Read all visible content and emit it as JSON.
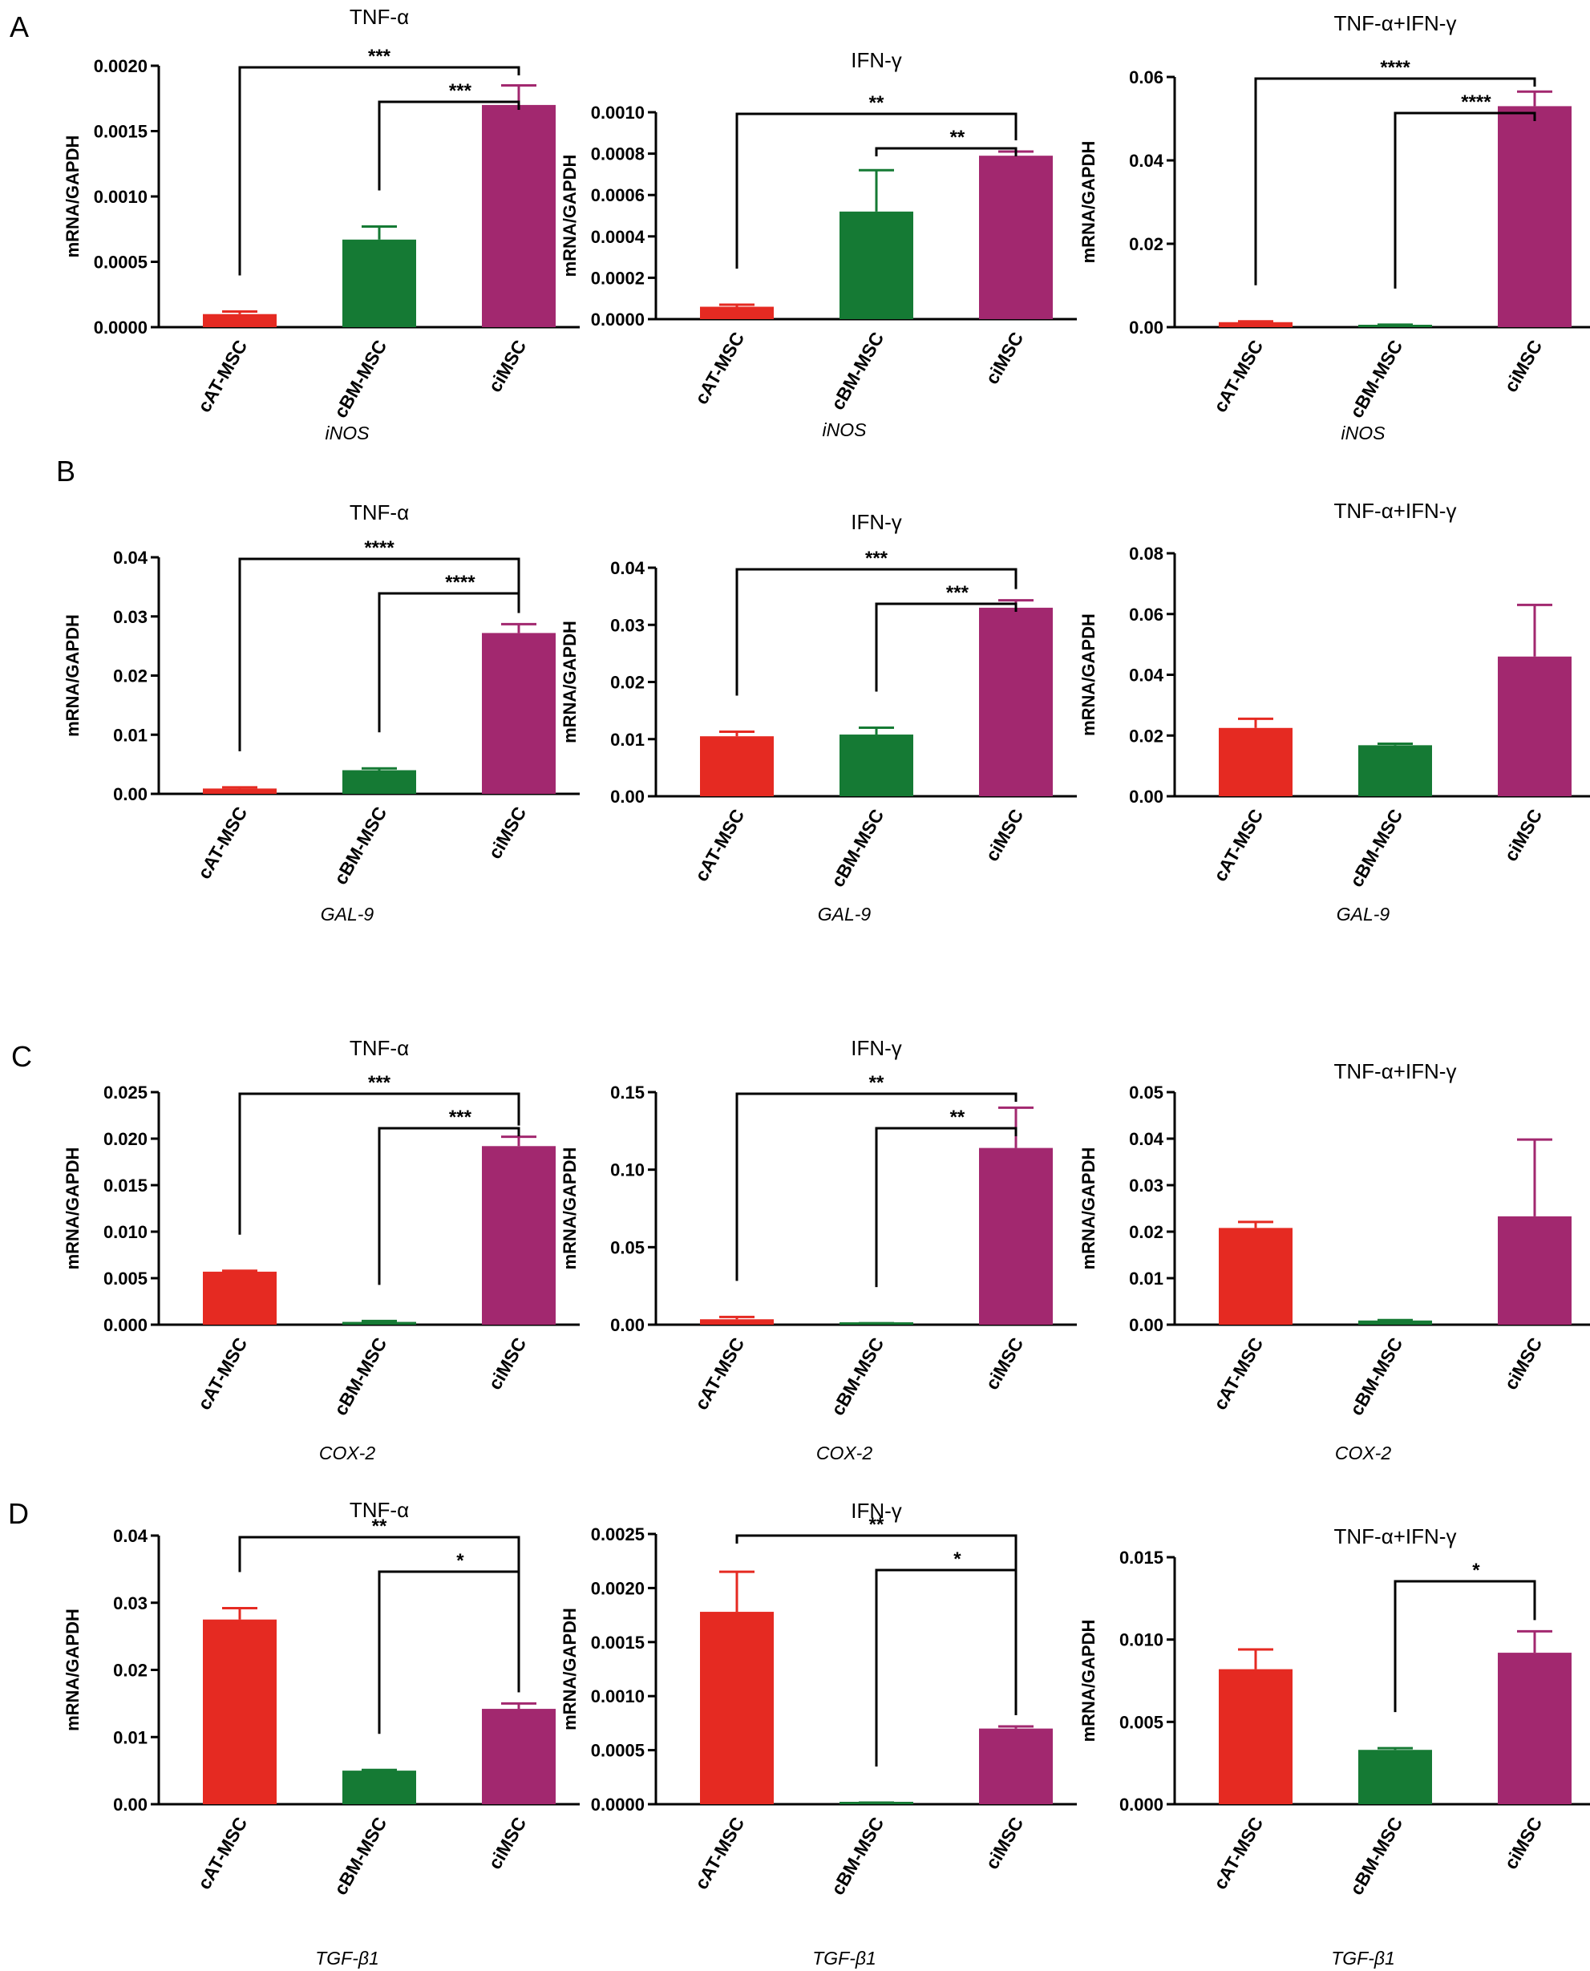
{
  "row_labels": [
    "A",
    "B",
    "C",
    "D"
  ],
  "colors": {
    "cAT-MSC": "#e52a22",
    "cBM-MSC": "#157a34",
    "ciMSC": "#a2286f",
    "axis": "#000000"
  },
  "chart_data": [
    {
      "type": "bar",
      "row": "A",
      "title": "TNF-α",
      "ylabel": "mRNA/GAPDH",
      "xlabel": "iNOS",
      "categories": [
        "cAT-MSC",
        "cBM-MSC",
        "ciMSC"
      ],
      "values": [
        0.0001,
        0.00067,
        0.0017
      ],
      "errors": [
        2e-05,
        0.0001,
        0.00015
      ],
      "ylim": [
        0,
        0.002
      ],
      "yticks": [
        "0.0000",
        "0.0005",
        "0.0010",
        "0.0015",
        "0.0020"
      ],
      "significance": [
        {
          "from": 0,
          "to": 2,
          "label": "***"
        },
        {
          "from": 1,
          "to": 2,
          "label": "***"
        }
      ]
    },
    {
      "type": "bar",
      "row": "A",
      "title": "IFN-γ",
      "ylabel": "mRNA/GAPDH",
      "xlabel": "iNOS",
      "categories": [
        "cAT-MSC",
        "cBM-MSC",
        "ciMSC"
      ],
      "values": [
        6e-05,
        0.00052,
        0.00079
      ],
      "errors": [
        1e-05,
        0.0002,
        2e-05
      ],
      "ylim": [
        0,
        0.001
      ],
      "yticks": [
        "0.0000",
        "0.0002",
        "0.0004",
        "0.0006",
        "0.0008",
        "0.0010"
      ],
      "significance": [
        {
          "from": 0,
          "to": 2,
          "label": "**"
        },
        {
          "from": 1,
          "to": 2,
          "label": "**"
        }
      ]
    },
    {
      "type": "bar",
      "row": "A",
      "title": "TNF-α+IFN-γ",
      "ylabel": "mRNA/GAPDH",
      "xlabel": "iNOS",
      "categories": [
        "cAT-MSC",
        "cBM-MSC",
        "ciMSC"
      ],
      "values": [
        0.0012,
        0.0005,
        0.053
      ],
      "errors": [
        0.0002,
        0.0001,
        0.0035
      ],
      "ylim": [
        0,
        0.06
      ],
      "yticks": [
        "0.00",
        "0.02",
        "0.04",
        "0.06"
      ],
      "significance": [
        {
          "from": 0,
          "to": 2,
          "label": "****"
        },
        {
          "from": 1,
          "to": 2,
          "label": "****"
        }
      ]
    },
    {
      "type": "bar",
      "row": "B",
      "title": "TNF-α",
      "ylabel": "mRNA/GAPDH",
      "xlabel": "GAL-9",
      "categories": [
        "cAT-MSC",
        "cBM-MSC",
        "ciMSC"
      ],
      "values": [
        0.0009,
        0.004,
        0.0272
      ],
      "errors": [
        0.0002,
        0.0003,
        0.0015
      ],
      "ylim": [
        0,
        0.04
      ],
      "yticks": [
        "0.00",
        "0.01",
        "0.02",
        "0.03",
        "0.04"
      ],
      "significance": [
        {
          "from": 0,
          "to": 2,
          "label": "****"
        },
        {
          "from": 1,
          "to": 2,
          "label": "****"
        }
      ]
    },
    {
      "type": "bar",
      "row": "B",
      "title": "IFN-γ",
      "ylabel": "mRNA/GAPDH",
      "xlabel": "GAL-9",
      "categories": [
        "cAT-MSC",
        "cBM-MSC",
        "ciMSC"
      ],
      "values": [
        0.0105,
        0.0108,
        0.033
      ],
      "errors": [
        0.0008,
        0.0012,
        0.0013
      ],
      "ylim": [
        0,
        0.04
      ],
      "yticks": [
        "0.00",
        "0.01",
        "0.02",
        "0.03",
        "0.04"
      ],
      "significance": [
        {
          "from": 0,
          "to": 2,
          "label": "***"
        },
        {
          "from": 1,
          "to": 2,
          "label": "***"
        }
      ]
    },
    {
      "type": "bar",
      "row": "B",
      "title": "TNF-α+IFN-γ",
      "ylabel": "mRNA/GAPDH",
      "xlabel": "GAL-9",
      "categories": [
        "cAT-MSC",
        "cBM-MSC",
        "ciMSC"
      ],
      "values": [
        0.0225,
        0.0168,
        0.046
      ],
      "errors": [
        0.003,
        0.0005,
        0.017
      ],
      "ylim": [
        0,
        0.08
      ],
      "yticks": [
        "0.00",
        "0.02",
        "0.04",
        "0.06",
        "0.08"
      ],
      "significance": []
    },
    {
      "type": "bar",
      "row": "C",
      "title": "TNF-α",
      "ylabel": "mRNA/GAPDH",
      "xlabel": "COX-2",
      "categories": [
        "cAT-MSC",
        "cBM-MSC",
        "ciMSC"
      ],
      "values": [
        0.0057,
        0.0003,
        0.0192
      ],
      "errors": [
        0.0001,
        0.0001,
        0.001
      ],
      "ylim": [
        0,
        0.025
      ],
      "yticks": [
        "0.000",
        "0.005",
        "0.010",
        "0.015",
        "0.020",
        "0.025"
      ],
      "significance": [
        {
          "from": 0,
          "to": 2,
          "label": "***"
        },
        {
          "from": 1,
          "to": 2,
          "label": "***"
        }
      ]
    },
    {
      "type": "bar",
      "row": "C",
      "title": "IFN-γ",
      "ylabel": "mRNA/GAPDH",
      "xlabel": "COX-2",
      "categories": [
        "cAT-MSC",
        "cBM-MSC",
        "ciMSC"
      ],
      "values": [
        0.0035,
        0.0008,
        0.114
      ],
      "errors": [
        0.0015,
        0.0002,
        0.026
      ],
      "ylim": [
        0,
        0.15
      ],
      "yticks": [
        "0.00",
        "0.05",
        "0.10",
        "0.15"
      ],
      "significance": [
        {
          "from": 0,
          "to": 2,
          "label": "**"
        },
        {
          "from": 1,
          "to": 2,
          "label": "**"
        }
      ]
    },
    {
      "type": "bar",
      "row": "C",
      "title": "TNF-α+IFN-γ",
      "ylabel": "mRNA/GAPDH",
      "xlabel": "COX-2",
      "categories": [
        "cAT-MSC",
        "cBM-MSC",
        "ciMSC"
      ],
      "values": [
        0.0208,
        0.0009,
        0.0233
      ],
      "errors": [
        0.0013,
        0.0001,
        0.0165
      ],
      "ylim": [
        0,
        0.05
      ],
      "yticks": [
        "0.00",
        "0.01",
        "0.02",
        "0.03",
        "0.04",
        "0.05"
      ],
      "significance": []
    },
    {
      "type": "bar",
      "row": "D",
      "title": "TNF-α",
      "ylabel": "mRNA/GAPDH",
      "xlabel": "TGF-β1",
      "categories": [
        "cAT-MSC",
        "cBM-MSC",
        "ciMSC"
      ],
      "values": [
        0.0275,
        0.005,
        0.0142
      ],
      "errors": [
        0.0017,
        0.0001,
        0.0008
      ],
      "ylim": [
        0,
        0.04
      ],
      "yticks": [
        "0.00",
        "0.01",
        "0.02",
        "0.03",
        "0.04"
      ],
      "significance": [
        {
          "from": 0,
          "to": 2,
          "label": "**"
        },
        {
          "from": 1,
          "to": 2,
          "label": "*"
        }
      ]
    },
    {
      "type": "bar",
      "row": "D",
      "title": "IFN-γ",
      "ylabel": "mRNA/GAPDH",
      "xlabel": "TGF-β1",
      "categories": [
        "cAT-MSC",
        "cBM-MSC",
        "ciMSC"
      ],
      "values": [
        0.00178,
        1e-05,
        0.0007
      ],
      "errors": [
        0.00037,
        5e-06,
        2e-05
      ],
      "ylim": [
        0,
        0.0025
      ],
      "yticks": [
        "0.0000",
        "0.0005",
        "0.0010",
        "0.0015",
        "0.0020",
        "0.0025"
      ],
      "significance": [
        {
          "from": 0,
          "to": 2,
          "label": "**"
        },
        {
          "from": 1,
          "to": 2,
          "label": "*"
        }
      ]
    },
    {
      "type": "bar",
      "row": "D",
      "title": "TNF-α+IFN-γ",
      "ylabel": "mRNA/GAPDH",
      "xlabel": "TGF-β1",
      "categories": [
        "cAT-MSC",
        "cBM-MSC",
        "ciMSC"
      ],
      "values": [
        0.0082,
        0.0033,
        0.0092
      ],
      "errors": [
        0.0012,
        0.0001,
        0.0013
      ],
      "ylim": [
        0,
        0.015
      ],
      "yticks": [
        "0.000",
        "0.005",
        "0.010",
        "0.015"
      ],
      "significance": [
        {
          "from": 1,
          "to": 2,
          "label": "*"
        }
      ]
    }
  ]
}
